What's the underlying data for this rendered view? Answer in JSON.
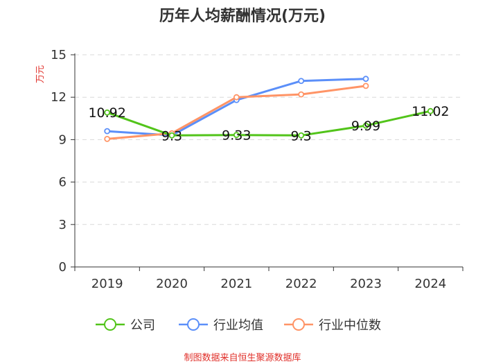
{
  "chart_data": {
    "type": "line",
    "title": "历年人均薪酬情况(万元)",
    "ylabel": "万元",
    "xlabel": "",
    "categories": [
      "2019",
      "2020",
      "2021",
      "2022",
      "2023",
      "2024"
    ],
    "ylim": [
      0,
      15
    ],
    "yticks": [
      0,
      3,
      6,
      9,
      12,
      15
    ],
    "grid": true,
    "legend_position": "bottom",
    "series": [
      {
        "name": "公司",
        "color": "#52c41a",
        "values": [
          10.92,
          9.3,
          9.33,
          9.3,
          9.99,
          11.02
        ],
        "labels": [
          "10.92",
          "9.3",
          "9.33",
          "9.3",
          "9.99",
          "11.02"
        ]
      },
      {
        "name": "行业均值",
        "color": "#5b8ff9",
        "values": [
          9.6,
          9.3,
          11.8,
          13.15,
          13.3,
          null
        ]
      },
      {
        "name": "行业中位数",
        "color": "#ff9466",
        "values": [
          9.05,
          9.45,
          12.0,
          12.2,
          12.8,
          null
        ]
      }
    ]
  },
  "source_text": "制图数据来自恒生聚源数据库"
}
